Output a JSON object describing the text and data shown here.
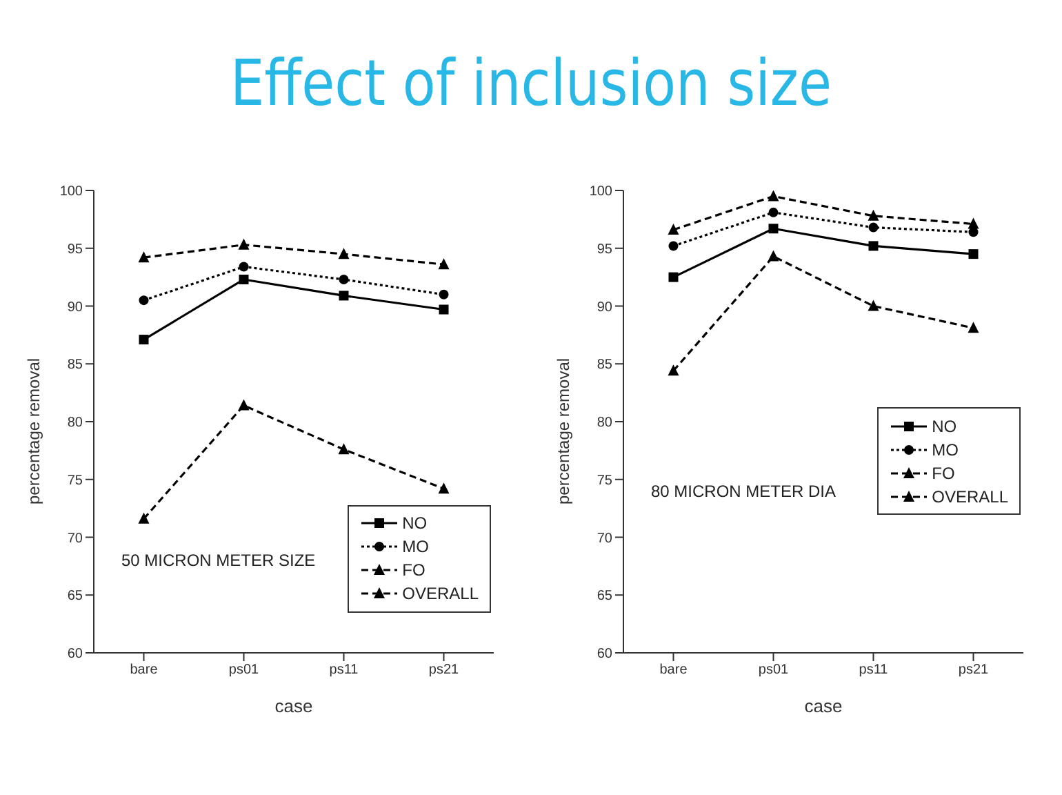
{
  "chart_data": [
    {
      "type": "line",
      "title": "Effect of inclusion size",
      "xlabel": "case",
      "ylabel": "percentage removal",
      "categories": [
        "bare",
        "ps01",
        "ps11",
        "ps21"
      ],
      "ylim": [
        60,
        100
      ],
      "yticks": [
        60,
        65,
        70,
        75,
        80,
        85,
        90,
        95,
        100
      ],
      "grid": false,
      "legend": "bottom right",
      "annotations": [
        "50 MICRON METER SIZE"
      ],
      "series": [
        {
          "name": "NO",
          "color": "#000000",
          "marker": "square",
          "line_style": "solid",
          "values": [
            87.1,
            92.3,
            90.9,
            89.7
          ]
        },
        {
          "name": "MO",
          "color": "#000000",
          "marker": "circle",
          "line_style": "dotted",
          "values": [
            90.5,
            93.4,
            92.3,
            91.0
          ]
        },
        {
          "name": "FO",
          "color": "#000000",
          "marker": "triangle",
          "line_style": "dashed",
          "values": [
            94.2,
            95.3,
            94.5,
            93.6
          ]
        },
        {
          "name": "OVERALL",
          "color": "#000000",
          "marker": "triangle",
          "line_style": "dashed",
          "values": [
            71.6,
            81.4,
            77.6,
            74.2
          ]
        }
      ]
    },
    {
      "type": "line",
      "xlabel": "case",
      "ylabel": "percentage removal",
      "categories": [
        "bare",
        "ps01",
        "ps11",
        "ps21"
      ],
      "ylim": [
        60,
        100
      ],
      "yticks": [
        60,
        65,
        70,
        75,
        80,
        85,
        90,
        95,
        100
      ],
      "grid": false,
      "legend": "right",
      "annotations": [
        "80 MICRON METER DIA"
      ],
      "series": [
        {
          "name": "NO",
          "color": "#000000",
          "marker": "square",
          "line_style": "solid",
          "values": [
            92.5,
            96.7,
            95.2,
            94.5
          ]
        },
        {
          "name": "MO",
          "color": "#000000",
          "marker": "circle",
          "line_style": "dotted",
          "values": [
            95.2,
            98.1,
            96.8,
            96.4
          ]
        },
        {
          "name": "FO",
          "color": "#000000",
          "marker": "triangle",
          "line_style": "dashed",
          "values": [
            96.6,
            99.5,
            97.8,
            97.1
          ]
        },
        {
          "name": "OVERALL",
          "color": "#000000",
          "marker": "triangle",
          "line_style": "dashed",
          "values": [
            84.4,
            94.3,
            90.0,
            88.1
          ]
        }
      ]
    }
  ]
}
